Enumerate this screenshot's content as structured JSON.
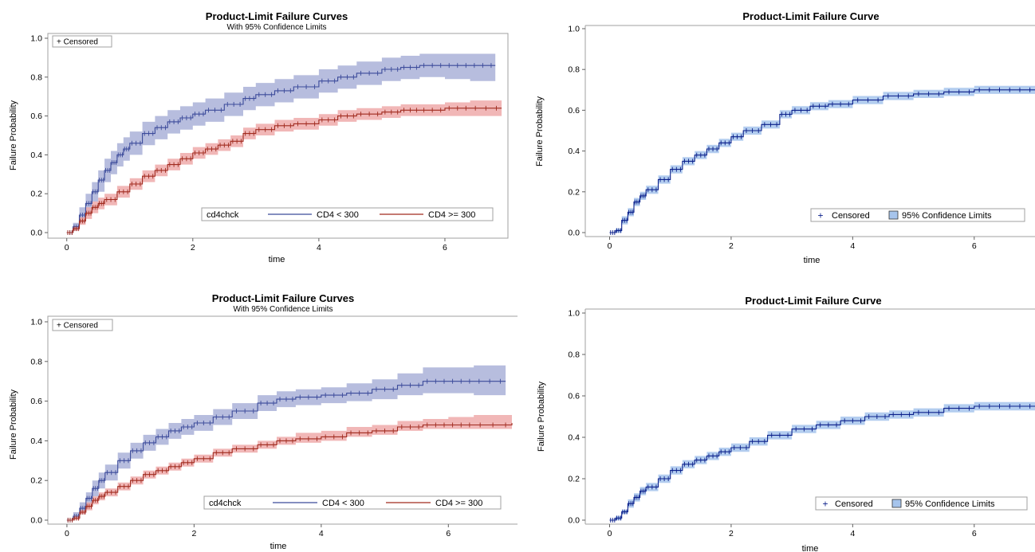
{
  "chart_data": [
    {
      "type": "line",
      "title": "Product-Limit Failure Curves",
      "subtitle": "With 95% Confidence Limits",
      "xlabel": "time",
      "ylabel": "Failure Probability",
      "xlim": [
        -0.3,
        7.0
      ],
      "ylim": [
        0.0,
        1.0
      ],
      "xticks": [
        "0",
        "2",
        "4",
        "6"
      ],
      "yticks": [
        "0.0",
        "0.2",
        "0.4",
        "0.6",
        "0.8",
        "1.0"
      ],
      "censored_label": "+ Censored",
      "legend_title": "cd4chck",
      "grid": false,
      "series": [
        {
          "name": "CD4 < 300",
          "color": "#3b4a9a",
          "band_color": "#aab2d8",
          "x": [
            0,
            0.1,
            0.2,
            0.3,
            0.4,
            0.5,
            0.6,
            0.7,
            0.8,
            0.9,
            1.0,
            1.2,
            1.4,
            1.6,
            1.8,
            2.0,
            2.2,
            2.5,
            2.8,
            3.0,
            3.3,
            3.6,
            4.0,
            4.3,
            4.6,
            5.0,
            5.3,
            5.6,
            6.0,
            6.4,
            6.8
          ],
          "y": [
            0.0,
            0.03,
            0.09,
            0.15,
            0.21,
            0.27,
            0.32,
            0.36,
            0.4,
            0.43,
            0.46,
            0.51,
            0.54,
            0.57,
            0.59,
            0.61,
            0.63,
            0.66,
            0.69,
            0.71,
            0.73,
            0.75,
            0.78,
            0.8,
            0.82,
            0.84,
            0.85,
            0.86,
            0.86,
            0.86,
            0.86
          ],
          "lower": [
            0.0,
            0.01,
            0.05,
            0.1,
            0.16,
            0.21,
            0.26,
            0.3,
            0.34,
            0.37,
            0.4,
            0.45,
            0.48,
            0.51,
            0.53,
            0.55,
            0.57,
            0.6,
            0.63,
            0.65,
            0.67,
            0.69,
            0.72,
            0.74,
            0.76,
            0.78,
            0.79,
            0.8,
            0.79,
            0.78,
            0.78
          ],
          "upper": [
            0.0,
            0.05,
            0.13,
            0.2,
            0.26,
            0.32,
            0.38,
            0.42,
            0.46,
            0.49,
            0.52,
            0.57,
            0.6,
            0.63,
            0.65,
            0.67,
            0.69,
            0.72,
            0.75,
            0.77,
            0.79,
            0.81,
            0.84,
            0.86,
            0.88,
            0.9,
            0.91,
            0.92,
            0.92,
            0.92,
            0.92
          ]
        },
        {
          "name": "CD4 >= 300",
          "color": "#a02a1e",
          "band_color": "#efaaaa",
          "x": [
            0,
            0.1,
            0.2,
            0.3,
            0.4,
            0.5,
            0.6,
            0.8,
            1.0,
            1.2,
            1.4,
            1.6,
            1.8,
            2.0,
            2.2,
            2.4,
            2.6,
            2.8,
            3.0,
            3.3,
            3.6,
            4.0,
            4.3,
            4.6,
            5.0,
            5.3,
            5.6,
            6.0,
            6.4,
            6.9
          ],
          "y": [
            0.0,
            0.02,
            0.06,
            0.1,
            0.13,
            0.15,
            0.17,
            0.21,
            0.25,
            0.29,
            0.32,
            0.35,
            0.38,
            0.41,
            0.43,
            0.45,
            0.47,
            0.51,
            0.53,
            0.55,
            0.56,
            0.58,
            0.6,
            0.61,
            0.62,
            0.63,
            0.63,
            0.64,
            0.64,
            0.64
          ],
          "lower": [
            0.0,
            0.01,
            0.04,
            0.07,
            0.1,
            0.12,
            0.14,
            0.18,
            0.22,
            0.26,
            0.29,
            0.32,
            0.35,
            0.38,
            0.4,
            0.42,
            0.44,
            0.48,
            0.5,
            0.52,
            0.53,
            0.55,
            0.57,
            0.58,
            0.59,
            0.6,
            0.6,
            0.6,
            0.6,
            0.6
          ],
          "upper": [
            0.0,
            0.03,
            0.08,
            0.13,
            0.16,
            0.18,
            0.2,
            0.24,
            0.28,
            0.32,
            0.35,
            0.38,
            0.41,
            0.44,
            0.46,
            0.48,
            0.5,
            0.54,
            0.56,
            0.58,
            0.59,
            0.61,
            0.63,
            0.64,
            0.65,
            0.66,
            0.66,
            0.67,
            0.68,
            0.68
          ]
        }
      ]
    },
    {
      "type": "line",
      "title": "Product-Limit Failure Curve",
      "xlabel": "time",
      "ylabel": "Failure Probability",
      "xlim": [
        -0.4,
        7.0
      ],
      "ylim": [
        0.0,
        1.0
      ],
      "xticks": [
        "0",
        "2",
        "4",
        "6"
      ],
      "yticks": [
        "0.0",
        "0.2",
        "0.4",
        "0.6",
        "0.8",
        "1.0"
      ],
      "censored_label": "Censored",
      "band_label": "95% Confidence Limits",
      "grid": false,
      "series": [
        {
          "name": "",
          "color": "#0a1f8a",
          "band_color": "#a6c4ec",
          "x": [
            0,
            0.1,
            0.2,
            0.3,
            0.4,
            0.5,
            0.6,
            0.8,
            1.0,
            1.2,
            1.4,
            1.6,
            1.8,
            2.0,
            2.2,
            2.5,
            2.8,
            3.0,
            3.3,
            3.6,
            4.0,
            4.5,
            5.0,
            5.5,
            6.0,
            6.5,
            7.0
          ],
          "y": [
            0.0,
            0.01,
            0.06,
            0.1,
            0.15,
            0.18,
            0.21,
            0.26,
            0.31,
            0.35,
            0.38,
            0.41,
            0.44,
            0.47,
            0.5,
            0.53,
            0.58,
            0.6,
            0.62,
            0.63,
            0.65,
            0.67,
            0.68,
            0.69,
            0.7,
            0.7,
            0.7
          ],
          "lower": [
            0.0,
            0.0,
            0.04,
            0.08,
            0.13,
            0.16,
            0.19,
            0.24,
            0.29,
            0.33,
            0.36,
            0.39,
            0.42,
            0.45,
            0.48,
            0.51,
            0.56,
            0.58,
            0.6,
            0.61,
            0.63,
            0.65,
            0.66,
            0.67,
            0.68,
            0.68,
            0.68
          ],
          "upper": [
            0.0,
            0.02,
            0.08,
            0.12,
            0.17,
            0.2,
            0.23,
            0.28,
            0.33,
            0.37,
            0.4,
            0.43,
            0.46,
            0.49,
            0.52,
            0.55,
            0.6,
            0.62,
            0.64,
            0.65,
            0.67,
            0.69,
            0.7,
            0.71,
            0.72,
            0.72,
            0.72
          ]
        }
      ]
    },
    {
      "type": "line",
      "title": "Product-Limit Failure Curves",
      "subtitle": "With 95% Confidence Limits",
      "xlabel": "time",
      "ylabel": "Failure Probability",
      "xlim": [
        -0.3,
        7.1
      ],
      "ylim": [
        0.0,
        1.0
      ],
      "xticks": [
        "0",
        "2",
        "4",
        "6"
      ],
      "yticks": [
        "0.0",
        "0.2",
        "0.4",
        "0.6",
        "0.8",
        "1.0"
      ],
      "censored_label": "+ Censored",
      "legend_title": "cd4chck",
      "grid": false,
      "series": [
        {
          "name": "CD4 < 300",
          "color": "#3b4a9a",
          "band_color": "#aab2d8",
          "x": [
            0,
            0.1,
            0.2,
            0.3,
            0.4,
            0.5,
            0.6,
            0.8,
            1.0,
            1.2,
            1.4,
            1.6,
            1.8,
            2.0,
            2.3,
            2.6,
            3.0,
            3.3,
            3.6,
            4.0,
            4.4,
            4.8,
            5.2,
            5.6,
            6.0,
            6.4,
            6.9
          ],
          "y": [
            0.0,
            0.02,
            0.06,
            0.11,
            0.16,
            0.2,
            0.24,
            0.3,
            0.35,
            0.39,
            0.42,
            0.45,
            0.47,
            0.49,
            0.52,
            0.55,
            0.59,
            0.61,
            0.62,
            0.63,
            0.64,
            0.66,
            0.68,
            0.7,
            0.7,
            0.7,
            0.7
          ],
          "lower": [
            0.0,
            0.01,
            0.03,
            0.08,
            0.12,
            0.16,
            0.2,
            0.26,
            0.31,
            0.35,
            0.38,
            0.41,
            0.43,
            0.45,
            0.48,
            0.51,
            0.55,
            0.57,
            0.58,
            0.59,
            0.6,
            0.61,
            0.63,
            0.64,
            0.64,
            0.63,
            0.62
          ],
          "upper": [
            0.0,
            0.04,
            0.09,
            0.14,
            0.2,
            0.24,
            0.28,
            0.34,
            0.39,
            0.43,
            0.46,
            0.49,
            0.51,
            0.53,
            0.56,
            0.59,
            0.63,
            0.65,
            0.66,
            0.67,
            0.69,
            0.71,
            0.74,
            0.77,
            0.77,
            0.78,
            0.78
          ]
        },
        {
          "name": "CD4 >= 300",
          "color": "#a02a1e",
          "band_color": "#efaaaa",
          "x": [
            0,
            0.1,
            0.2,
            0.3,
            0.4,
            0.5,
            0.6,
            0.8,
            1.0,
            1.2,
            1.4,
            1.6,
            1.8,
            2.0,
            2.3,
            2.6,
            3.0,
            3.3,
            3.6,
            4.0,
            4.4,
            4.8,
            5.2,
            5.6,
            6.0,
            6.4,
            7.0
          ],
          "y": [
            0.0,
            0.01,
            0.04,
            0.07,
            0.1,
            0.12,
            0.14,
            0.17,
            0.2,
            0.23,
            0.25,
            0.27,
            0.29,
            0.31,
            0.34,
            0.36,
            0.38,
            0.4,
            0.41,
            0.42,
            0.44,
            0.45,
            0.47,
            0.48,
            0.48,
            0.48,
            0.49
          ],
          "lower": [
            0.0,
            0.0,
            0.03,
            0.05,
            0.08,
            0.1,
            0.12,
            0.15,
            0.18,
            0.21,
            0.23,
            0.25,
            0.27,
            0.29,
            0.32,
            0.34,
            0.36,
            0.38,
            0.39,
            0.4,
            0.42,
            0.43,
            0.45,
            0.46,
            0.46,
            0.46,
            0.46
          ],
          "upper": [
            0.0,
            0.02,
            0.05,
            0.09,
            0.12,
            0.14,
            0.16,
            0.19,
            0.22,
            0.25,
            0.27,
            0.29,
            0.31,
            0.33,
            0.36,
            0.38,
            0.4,
            0.42,
            0.44,
            0.45,
            0.47,
            0.48,
            0.5,
            0.51,
            0.52,
            0.53,
            0.53
          ]
        }
      ]
    },
    {
      "type": "line",
      "title": "Product-Limit Failure Curve",
      "xlabel": "time",
      "ylabel": "Failure Probability",
      "xlim": [
        -0.4,
        7.0
      ],
      "ylim": [
        0.0,
        1.0
      ],
      "xticks": [
        "0",
        "2",
        "4",
        "6"
      ],
      "yticks": [
        "0.0",
        "0.2",
        "0.4",
        "0.6",
        "0.8",
        "1.0"
      ],
      "censored_label": "Censored",
      "band_label": "95% Confidence Limits",
      "grid": false,
      "series": [
        {
          "name": "",
          "color": "#0a1f8a",
          "band_color": "#a6c4ec",
          "x": [
            0,
            0.1,
            0.2,
            0.3,
            0.4,
            0.5,
            0.6,
            0.8,
            1.0,
            1.2,
            1.4,
            1.6,
            1.8,
            2.0,
            2.3,
            2.6,
            3.0,
            3.4,
            3.8,
            4.2,
            4.6,
            5.0,
            5.5,
            6.0,
            6.5,
            7.0
          ],
          "y": [
            0.0,
            0.01,
            0.04,
            0.08,
            0.11,
            0.14,
            0.16,
            0.2,
            0.24,
            0.27,
            0.29,
            0.31,
            0.33,
            0.35,
            0.38,
            0.41,
            0.44,
            0.46,
            0.48,
            0.5,
            0.51,
            0.52,
            0.54,
            0.55,
            0.55,
            0.55
          ],
          "lower": [
            0.0,
            0.0,
            0.03,
            0.06,
            0.09,
            0.12,
            0.14,
            0.18,
            0.22,
            0.25,
            0.27,
            0.29,
            0.31,
            0.33,
            0.36,
            0.39,
            0.42,
            0.44,
            0.46,
            0.48,
            0.49,
            0.5,
            0.52,
            0.53,
            0.53,
            0.53
          ],
          "upper": [
            0.0,
            0.02,
            0.05,
            0.1,
            0.13,
            0.16,
            0.18,
            0.22,
            0.26,
            0.29,
            0.31,
            0.33,
            0.35,
            0.37,
            0.4,
            0.43,
            0.46,
            0.48,
            0.5,
            0.52,
            0.53,
            0.54,
            0.56,
            0.57,
            0.57,
            0.57
          ]
        }
      ]
    }
  ]
}
